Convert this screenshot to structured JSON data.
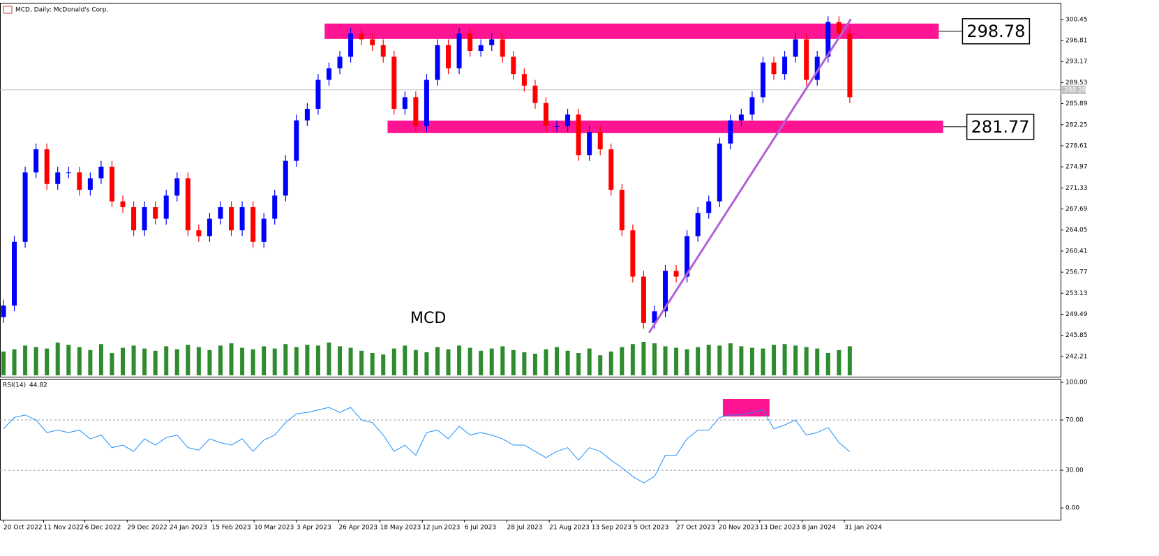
{
  "chart_data": [
    {
      "type": "candlestick",
      "title": "MCD, Daily:  McDonald's Corp.",
      "annotation": "MCD",
      "up_color": "#0000ff",
      "down_color": "#ff0000",
      "volume_color": "#2e8b2e",
      "open": [
        249,
        251,
        262,
        274,
        278,
        272,
        274,
        274,
        271,
        273,
        275,
        269,
        268,
        264,
        268,
        266,
        270,
        273,
        264,
        263,
        266,
        268,
        264,
        268,
        262,
        266,
        270,
        276,
        283,
        285,
        290,
        292,
        294,
        298,
        297,
        296,
        294,
        285,
        287,
        282,
        290,
        296,
        292,
        298,
        295,
        296,
        297,
        294,
        291,
        289,
        286,
        282,
        282,
        284,
        277,
        281,
        278,
        271,
        264,
        256,
        248,
        250,
        257,
        256,
        263,
        267,
        269,
        279,
        283,
        284,
        287,
        293,
        291,
        294,
        297,
        290,
        294,
        300,
        298
      ],
      "high": [
        252,
        263,
        275,
        279,
        279,
        275,
        275,
        275,
        274,
        276,
        276,
        270,
        269,
        269,
        269,
        271,
        274,
        274,
        265,
        267,
        269,
        269,
        269,
        269,
        267,
        271,
        277,
        284,
        286,
        291,
        293,
        295,
        299,
        299,
        298,
        297,
        295,
        288,
        288,
        291,
        297,
        297,
        299,
        299,
        297,
        298,
        298,
        295,
        292,
        290,
        287,
        283,
        285,
        285,
        282,
        282,
        279,
        272,
        265,
        257,
        251,
        258,
        258,
        264,
        268,
        270,
        280,
        284,
        285,
        288,
        294,
        294,
        295,
        298,
        298,
        295,
        301,
        301,
        299
      ],
      "low": [
        248,
        250,
        261,
        273,
        271,
        271,
        273,
        270,
        270,
        272,
        268,
        267,
        263,
        263,
        265,
        265,
        269,
        263,
        262,
        262,
        265,
        263,
        263,
        261,
        261,
        265,
        269,
        275,
        282,
        284,
        289,
        291,
        293,
        296,
        295,
        293,
        284,
        284,
        281,
        281,
        289,
        291,
        291,
        294,
        294,
        295,
        293,
        290,
        288,
        285,
        281,
        281,
        281,
        276,
        276,
        277,
        270,
        263,
        255,
        247,
        247,
        249,
        255,
        255,
        262,
        266,
        268,
        278,
        282,
        283,
        286,
        290,
        290,
        293,
        289,
        289,
        293,
        297,
        286
      ],
      "close": [
        251,
        262,
        274,
        278,
        272,
        274,
        274,
        271,
        273,
        275,
        269,
        268,
        264,
        268,
        266,
        270,
        273,
        264,
        263,
        266,
        268,
        264,
        268,
        262,
        266,
        270,
        276,
        283,
        285,
        290,
        292,
        294,
        298,
        297,
        296,
        294,
        285,
        287,
        282,
        290,
        296,
        292,
        298,
        295,
        296,
        297,
        294,
        291,
        289,
        286,
        282,
        282,
        284,
        277,
        281,
        278,
        271,
        264,
        256,
        248,
        250,
        257,
        256,
        263,
        267,
        269,
        279,
        283,
        284,
        287,
        293,
        291,
        294,
        297,
        290,
        294,
        300,
        298,
        287
      ],
      "volume": [
        32,
        35,
        40,
        38,
        36,
        44,
        41,
        38,
        34,
        42,
        30,
        37,
        40,
        36,
        33,
        39,
        35,
        41,
        38,
        34,
        40,
        43,
        37,
        35,
        39,
        36,
        42,
        38,
        41,
        40,
        44,
        39,
        37,
        33,
        30,
        28,
        36,
        40,
        34,
        31,
        38,
        35,
        40,
        37,
        33,
        36,
        39,
        34,
        31,
        29,
        35,
        38,
        33,
        30,
        36,
        27,
        32,
        38,
        42,
        45,
        43,
        39,
        37,
        35,
        38,
        41,
        40,
        43,
        39,
        37,
        36,
        41,
        42,
        40,
        38,
        36,
        30,
        34,
        39
      ],
      "xlim": [
        -0.32,
        97.43
      ],
      "xticks": [
        {
          "value": 0,
          "label": "20 Oct 2022"
        },
        {
          "value": 3.7,
          "label": "11 Nov 2022"
        },
        {
          "value": 7.5,
          "label": "6 Dec 2022"
        },
        {
          "value": 11.4,
          "label": "29 Dec 2022"
        },
        {
          "value": 15.3,
          "label": "24 Jan 2023"
        },
        {
          "value": 19.2,
          "label": "15 Feb 2023"
        },
        {
          "value": 23.1,
          "label": "10 Mar 2023"
        },
        {
          "value": 27.0,
          "label": "3 Apr 2023"
        },
        {
          "value": 30.9,
          "label": "26 Apr 2023"
        },
        {
          "value": 34.7,
          "label": "18 May 2023"
        },
        {
          "value": 38.6,
          "label": "12 Jun 2023"
        },
        {
          "value": 42.5,
          "label": "6 Jul 2023"
        },
        {
          "value": 46.4,
          "label": "28 Jul 2023"
        },
        {
          "value": 50.3,
          "label": "21 Aug 2023"
        },
        {
          "value": 54.2,
          "label": "13 Sep 2023"
        },
        {
          "value": 58.1,
          "label": "5 Oct 2023"
        },
        {
          "value": 62.0,
          "label": "27 Oct 2023"
        },
        {
          "value": 65.9,
          "label": "20 Nov 2023"
        },
        {
          "value": 69.7,
          "label": "13 Dec 2023"
        },
        {
          "value": 73.6,
          "label": "8 Jan 2024"
        },
        {
          "value": 77.5,
          "label": "31 Jan 2024"
        }
      ],
      "ylim": [
        238.7,
        303.2
      ],
      "yticks": [
        300.45,
        296.81,
        293.17,
        289.53,
        285.89,
        282.25,
        278.61,
        274.97,
        271.33,
        267.69,
        264.05,
        260.41,
        256.77,
        253.13,
        249.49,
        245.85,
        242.21
      ],
      "current_price": 288.28,
      "zones": [
        {
          "value": 298.78,
          "low": 297.07,
          "high": 299.73,
          "start": 29.6,
          "end": 86.2,
          "color": "#ff1493"
        },
        {
          "value": 281.77,
          "low": 280.8,
          "high": 282.97,
          "start": 35.4,
          "end": 86.6,
          "color": "#ff1493"
        }
      ],
      "trendline": {
        "x": [
          59.5,
          78.1
        ],
        "y": [
          246.3,
          300.5
        ],
        "color": "#b45fd6"
      }
    },
    {
      "type": "line",
      "title": "RSI(14)",
      "color": "#1e90ff",
      "values": [
        63,
        72,
        74,
        70,
        60,
        62,
        60,
        62,
        55,
        58,
        48,
        50,
        45,
        55,
        50,
        56,
        58,
        48,
        46,
        55,
        52,
        50,
        55,
        45,
        54,
        58,
        68,
        75,
        76,
        78,
        80,
        76,
        80,
        70,
        68,
        58,
        45,
        50,
        42,
        60,
        62,
        55,
        65,
        58,
        60,
        58,
        55,
        50,
        50,
        45,
        40,
        45,
        48,
        38,
        48,
        45,
        38,
        32,
        25,
        20,
        25,
        42,
        42,
        55,
        62,
        62,
        72,
        74,
        74,
        76,
        78,
        63,
        66,
        70,
        58,
        60,
        64,
        52,
        44.82
      ],
      "xlim": [
        -0.32,
        97.43
      ],
      "ylim": [
        -9.4,
        102.8
      ],
      "yticks": [
        {
          "value": 100,
          "label": "100.00"
        },
        {
          "value": 70,
          "label": "70.00"
        },
        {
          "value": 30,
          "label": "30.00"
        },
        {
          "value": 0,
          "label": "0.00"
        }
      ],
      "dashed_levels": [
        70,
        30
      ],
      "zone": {
        "x": [
          66.3,
          70.6
        ],
        "y": [
          72.8,
          86.7
        ],
        "color": "#ff1493"
      }
    }
  ]
}
